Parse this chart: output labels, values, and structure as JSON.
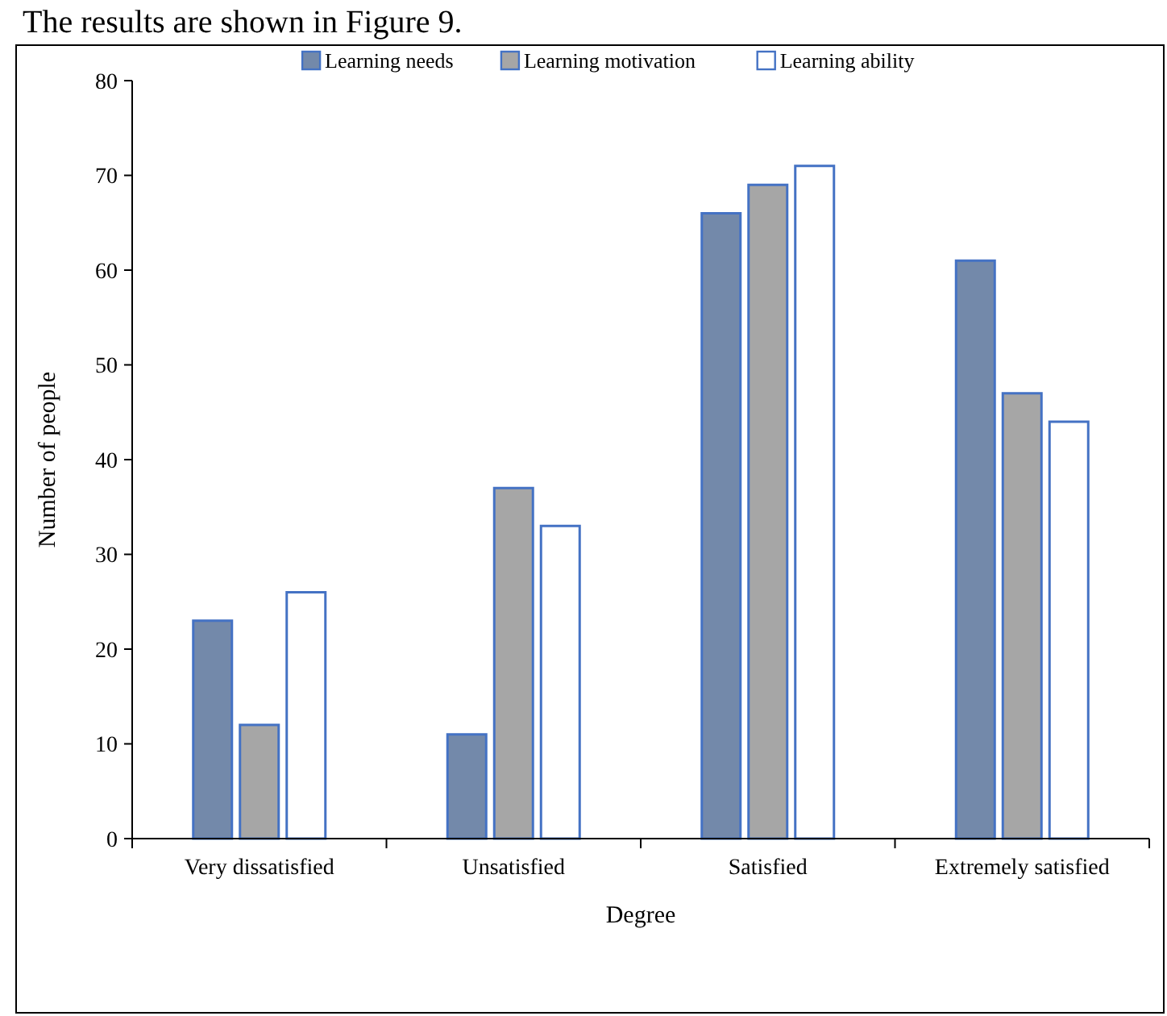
{
  "chart_data": {
    "type": "bar",
    "xlabel": "Degree",
    "ylabel": "Number of people",
    "annotations": [
      "The results are shown in Figure 9."
    ],
    "categories": [
      "Very dissatisfied",
      "Unsatisfied",
      "Satisfied",
      "Extremely satisfied"
    ],
    "series": [
      {
        "name": "Learning needs",
        "color": "#7389aa",
        "values": [
          23,
          11,
          66,
          61
        ]
      },
      {
        "name": "Learning motivation",
        "color": "#a6a6a6",
        "values": [
          12,
          37,
          69,
          47
        ]
      },
      {
        "name": "Learning ability",
        "color": "#ffffff",
        "values": [
          26,
          33,
          71,
          44
        ]
      }
    ],
    "ylim": [
      0,
      80
    ],
    "yticks": [
      0,
      10,
      20,
      30,
      40,
      50,
      60,
      70,
      80
    ],
    "grid": false,
    "legend": "top"
  }
}
